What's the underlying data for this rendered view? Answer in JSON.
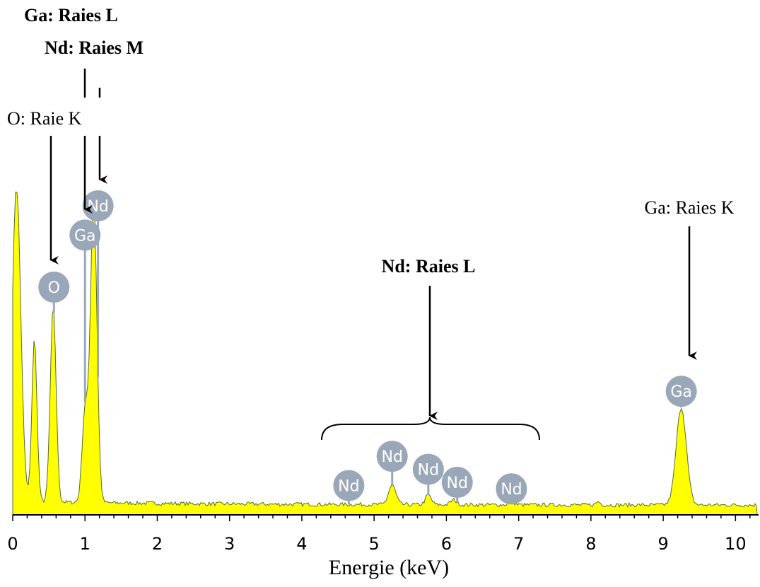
{
  "chart_data": {
    "type": "area",
    "title": "",
    "xlabel": "Energie (keV)",
    "ylabel": "",
    "xlim": [
      0,
      10.3
    ],
    "ylim": [
      0,
      1
    ],
    "grid": false,
    "x_ticks": [
      "0",
      "1",
      "2",
      "3",
      "4",
      "5",
      "6",
      "7",
      "8",
      "9",
      "10"
    ],
    "fill_color": "#ffff00",
    "edge_color": "#556b2f",
    "marker_color": "#9aa7b8",
    "background_level": 0.03,
    "peaks": [
      {
        "x": 0.05,
        "height": 0.99,
        "width": 0.06
      },
      {
        "x": 0.3,
        "height": 0.5,
        "width": 0.035
      },
      {
        "x": 0.56,
        "height": 0.6,
        "width": 0.04
      },
      {
        "x": 1.0,
        "height": 0.28,
        "width": 0.04
      },
      {
        "x": 1.12,
        "height": 0.94,
        "width": 0.045
      },
      {
        "x": 5.25,
        "height": 0.06,
        "width": 0.05
      },
      {
        "x": 5.75,
        "height": 0.03,
        "width": 0.04
      },
      {
        "x": 6.1,
        "height": 0.015,
        "width": 0.04
      },
      {
        "x": 6.9,
        "height": 0.01,
        "width": 0.04
      },
      {
        "x": 8.1,
        "height": 0.01,
        "width": 0.03
      },
      {
        "x": 9.25,
        "height": 0.3,
        "width": 0.07
      }
    ],
    "element_markers": [
      {
        "label": "O",
        "x": 0.57,
        "level": 0.7
      },
      {
        "label": "Ga",
        "x": 1.0,
        "level": 0.86
      },
      {
        "label": "Nd",
        "x": 1.18,
        "level": 0.95
      },
      {
        "label": "Nd",
        "x": 4.65,
        "level": 0.09
      },
      {
        "label": "Nd",
        "x": 5.25,
        "level": 0.18
      },
      {
        "label": "Nd",
        "x": 5.75,
        "level": 0.14
      },
      {
        "label": "Nd",
        "x": 6.15,
        "level": 0.1
      },
      {
        "label": "Nd",
        "x": 6.9,
        "level": 0.08
      },
      {
        "label": "Ga",
        "x": 9.25,
        "level": 0.38
      }
    ],
    "annotations": [
      {
        "text": "Ga: Raies L",
        "bold": true
      },
      {
        "text": "Nd: Raies M",
        "bold": true
      },
      {
        "text": "O: Raie K",
        "bold": false
      },
      {
        "text": "Nd: Raies L",
        "bold": true
      },
      {
        "text": "Ga: Raies K",
        "bold": false
      }
    ]
  }
}
